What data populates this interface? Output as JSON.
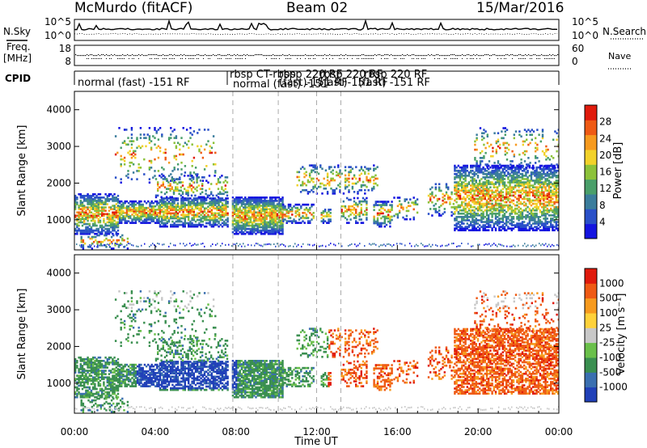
{
  "header": {
    "station": "McMurdo (fitACF)",
    "beam": "Beam 02",
    "date": "15/Mar/2016"
  },
  "labels": {
    "nsky": "N.Sky",
    "nsearch": "N.Search",
    "freq_line1": "Freq.",
    "freq_line2": "[MHz]",
    "nave": "Nave",
    "cpid": "CPID"
  },
  "chart_data": [
    {
      "type": "line",
      "panel": "noise",
      "ylim_left": [
        "10^0",
        "10^5"
      ],
      "left_ticks": [
        "10^5",
        "10^0"
      ],
      "right_ticks": [
        "10^5",
        "10^0"
      ],
      "series": [
        {
          "name": "N.Sky"
        },
        {
          "name": "N.Search"
        }
      ]
    },
    {
      "type": "line",
      "panel": "freq_nave",
      "left_ticks": [
        "18",
        "8"
      ],
      "right_ticks": [
        "60",
        "0"
      ],
      "series": [
        {
          "name": "Freq."
        },
        {
          "name": "Nave"
        }
      ]
    },
    {
      "type": "table",
      "panel": "cpid",
      "entries": [
        "normal (fast) -151 RF",
        "rbsp CT-rbsp",
        "normal (fast) -151",
        "rbsp 220 RF",
        "(fast)-151 RF",
        "rbsp 220 RF",
        "(fast)-151 RF",
        "rbsp 220 RF",
        "(fast) -151 RF"
      ]
    },
    {
      "type": "heatmap",
      "panel": "power",
      "ylabel": "Slant Range [km]",
      "yticks": [
        "1000",
        "2000",
        "3000",
        "4000"
      ],
      "ylim": [
        180,
        4500
      ],
      "colorbar": {
        "label": "Power [dB]",
        "ticks": [
          "4",
          "8",
          "12",
          "16",
          "20",
          "24",
          "28"
        ],
        "colors": [
          "#1414e0",
          "#2a50c8",
          "#3b7d9c",
          "#4a9f6a",
          "#8cc23a",
          "#f2d22a",
          "#f79a1e",
          "#ef5a14",
          "#e01a0c"
        ]
      },
      "vlines_hours": [
        7.85,
        10.1,
        12.0,
        13.2
      ]
    },
    {
      "type": "heatmap",
      "panel": "velocity",
      "ylabel": "Slant Range [km]",
      "yticks": [
        "1000",
        "2000",
        "3000",
        "4000"
      ],
      "ylim": [
        180,
        4500
      ],
      "colorbar": {
        "label": "Velocity [m s⁻¹]",
        "ticks": [
          "1000",
          "500",
          "100",
          "25",
          "-25",
          "-100",
          "-500",
          "-1000"
        ],
        "colors": [
          "#2040b8",
          "#3a6fb0",
          "#3a8f50",
          "#6ac04a",
          "#c8c8c8",
          "#ffd23a",
          "#f79a1e",
          "#ef5a14",
          "#e01a0c"
        ]
      },
      "xlabel": "Time UT",
      "xticks": [
        "00:00",
        "04:00",
        "08:00",
        "12:00",
        "16:00",
        "20:00",
        "00:00"
      ],
      "vlines_hours": [
        7.85,
        10.1,
        12.0,
        13.2
      ]
    }
  ]
}
